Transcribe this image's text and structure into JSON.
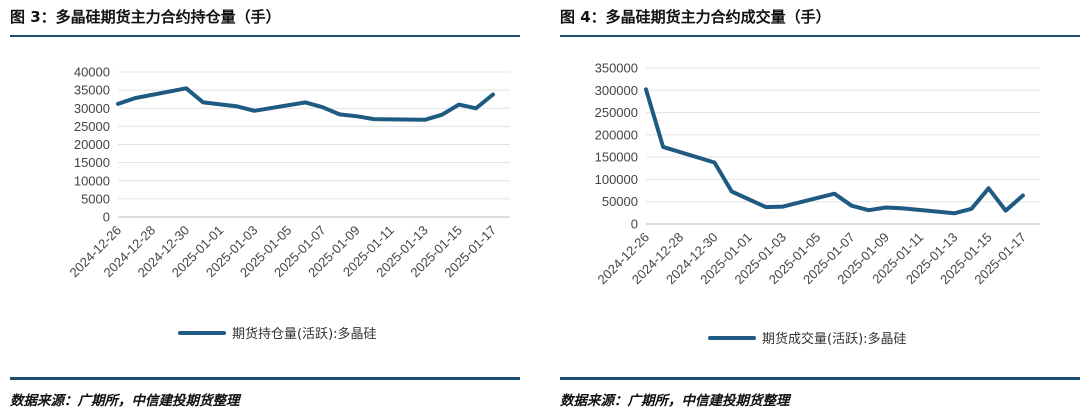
{
  "figures": [
    {
      "title": "图 3：多晶硅期货主力合约持仓量（手）",
      "source": "数据来源：广期所，中信建投期货整理",
      "legend": "期货持仓量(活跃):多晶硅",
      "color": "#1f5a82"
    },
    {
      "title": "图 4：多晶硅期货主力合约成交量（手）",
      "source": "数据来源：广期所，中信建投期货整理",
      "legend": "期货成交量(活跃):多晶硅",
      "color": "#1f5a82"
    }
  ],
  "chart_data": [
    {
      "type": "line",
      "title": "图 3：多晶硅期货主力合约持仓量（手）",
      "x_tick_labels": [
        "2024-12-26",
        "2024-12-28",
        "2024-12-30",
        "2025-01-01",
        "2025-01-03",
        "2025-01-05",
        "2025-01-07",
        "2025-01-09",
        "2025-01-11",
        "2025-01-13",
        "2025-01-15",
        "2025-01-17"
      ],
      "y_tick_labels": [
        "0",
        "5000",
        "10000",
        "15000",
        "20000",
        "25000",
        "30000",
        "35000",
        "40000"
      ],
      "ylim": [
        0,
        40000
      ],
      "xlim": [
        "2024-12-26",
        "2025-01-18"
      ],
      "grid": "horizontal",
      "legend_position": "bottom",
      "series": [
        {
          "name": "期货持仓量(活跃):多晶硅",
          "x": [
            "2024-12-26",
            "2024-12-27",
            "2024-12-30",
            "2024-12-31",
            "2025-01-02",
            "2025-01-03",
            "2025-01-06",
            "2025-01-07",
            "2025-01-08",
            "2025-01-09",
            "2025-01-10",
            "2025-01-13",
            "2025-01-14",
            "2025-01-15",
            "2025-01-16",
            "2025-01-17"
          ],
          "values": [
            31200,
            32800,
            35500,
            31600,
            30500,
            29300,
            31600,
            30300,
            28300,
            27800,
            27000,
            26800,
            28200,
            31000,
            30000,
            33800
          ]
        }
      ]
    },
    {
      "type": "line",
      "title": "图 4：多晶硅期货主力合约成交量（手）",
      "x_tick_labels": [
        "2024-12-26",
        "2024-12-28",
        "2024-12-30",
        "2025-01-01",
        "2025-01-03",
        "2025-01-05",
        "2025-01-07",
        "2025-01-09",
        "2025-01-11",
        "2025-01-13",
        "2025-01-15",
        "2025-01-17"
      ],
      "y_tick_labels": [
        "0",
        "50000",
        "100000",
        "150000",
        "200000",
        "250000",
        "300000",
        "350000"
      ],
      "ylim": [
        0,
        350000
      ],
      "xlim": [
        "2024-12-26",
        "2025-01-18"
      ],
      "grid": "horizontal",
      "legend_position": "bottom",
      "series": [
        {
          "name": "期货成交量(活跃):多晶硅",
          "x": [
            "2024-12-26",
            "2024-12-27",
            "2024-12-30",
            "2024-12-31",
            "2025-01-02",
            "2025-01-03",
            "2025-01-06",
            "2025-01-07",
            "2025-01-08",
            "2025-01-09",
            "2025-01-10",
            "2025-01-13",
            "2025-01-14",
            "2025-01-15",
            "2025-01-16",
            "2025-01-17"
          ],
          "values": [
            302000,
            173000,
            138000,
            73000,
            38000,
            39000,
            68000,
            41000,
            31000,
            37000,
            35000,
            24000,
            34000,
            80000,
            30000,
            64000
          ]
        }
      ]
    }
  ]
}
